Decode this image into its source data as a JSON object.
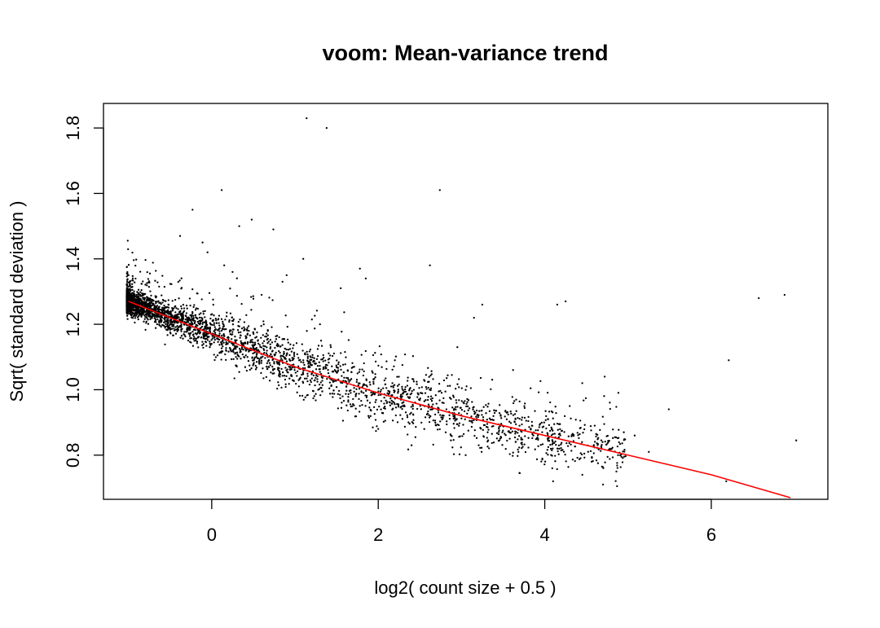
{
  "chart_data": {
    "type": "scatter",
    "title": "voom: Mean-variance trend",
    "xlabel": "log2( count size + 0.5 )",
    "ylabel": "Sqrt( standard deviation )",
    "xlim": [
      -1.3,
      7.4
    ],
    "ylim": [
      0.665,
      1.875
    ],
    "xticks": [
      0,
      2,
      4,
      6
    ],
    "yticks": [
      0.8,
      1.0,
      1.2,
      1.4,
      1.6,
      1.8
    ],
    "grid": false,
    "legend": "none",
    "point_color": "#000000",
    "trend_color": "#ff0000",
    "trend_line": {
      "x": [
        -1.0,
        0.0,
        1.0,
        2.0,
        3.0,
        4.0,
        5.0,
        6.0,
        6.95
      ],
      "y": [
        1.27,
        1.17,
        1.07,
        0.99,
        0.92,
        0.86,
        0.8,
        0.74,
        0.67
      ]
    },
    "series": [
      {
        "x": [
          1.14,
          1.38,
          2.74,
          0.12,
          -0.23,
          0.48,
          0.74,
          0.33,
          -0.38,
          -0.11,
          1.78,
          2.62,
          6.88,
          6.57,
          6.21,
          7.02,
          5.49,
          5.25,
          6.18,
          1.1,
          1.85,
          0.9,
          3.25,
          3.15,
          2.95,
          2.2,
          3.7,
          4.1,
          4.7,
          4.86,
          4.95,
          5.08,
          4.6,
          4.3,
          3.62,
          4.15,
          4.25,
          4.45,
          4.72,
          2.55,
          3.05,
          1.55,
          0.25,
          -0.05,
          0.6,
          0.15,
          0.85,
          1.3,
          2.0,
          2.4,
          1.9
        ],
        "y": [
          1.83,
          1.8,
          1.61,
          1.61,
          1.55,
          1.52,
          1.49,
          1.5,
          1.47,
          1.45,
          1.37,
          1.38,
          1.29,
          1.28,
          1.09,
          0.845,
          0.94,
          0.81,
          0.72,
          1.4,
          1.34,
          1.35,
          1.26,
          1.22,
          1.13,
          1.09,
          0.745,
          0.72,
          0.71,
          0.75,
          0.87,
          0.86,
          0.89,
          0.95,
          1.06,
          1.26,
          1.27,
          1.02,
          1.04,
          1.03,
          0.8,
          1.31,
          1.36,
          1.42,
          1.29,
          1.38,
          1.33,
          1.2,
          0.88,
          0.83,
          0.96
        ]
      }
    ]
  }
}
